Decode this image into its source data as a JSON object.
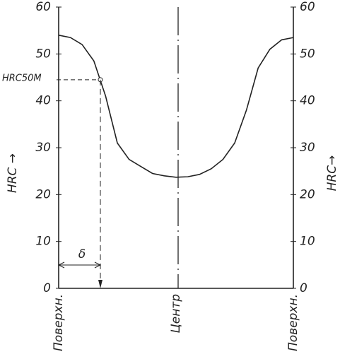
{
  "chart_data": {
    "type": "line",
    "categories": [
      "Поверхн.",
      null,
      null,
      null,
      null,
      null,
      null,
      null,
      null,
      null,
      "Центр",
      null,
      null,
      null,
      null,
      null,
      null,
      null,
      null,
      null,
      "Поверхн."
    ],
    "series": [
      {
        "color": "#222222",
        "values": [
          54,
          53.5,
          52,
          48.5,
          41,
          31,
          27.5,
          26,
          24.5,
          24,
          23.7,
          23.8,
          24.3,
          25.5,
          27.5,
          31,
          38,
          47,
          51,
          53,
          53.5
        ]
      }
    ],
    "ylabel": "HRC →",
    "y2label": "HRC→",
    "ylim": [
      0,
      60
    ],
    "yticks": [
      0,
      10,
      20,
      30,
      40,
      50,
      60
    ],
    "y2lim": [
      0,
      60
    ],
    "y2ticks": [
      0,
      10,
      20,
      30,
      40,
      50,
      60
    ],
    "annotations": [
      {
        "text": "HRC50M",
        "y": 44.5
      },
      {
        "text": "δ"
      }
    ]
  }
}
